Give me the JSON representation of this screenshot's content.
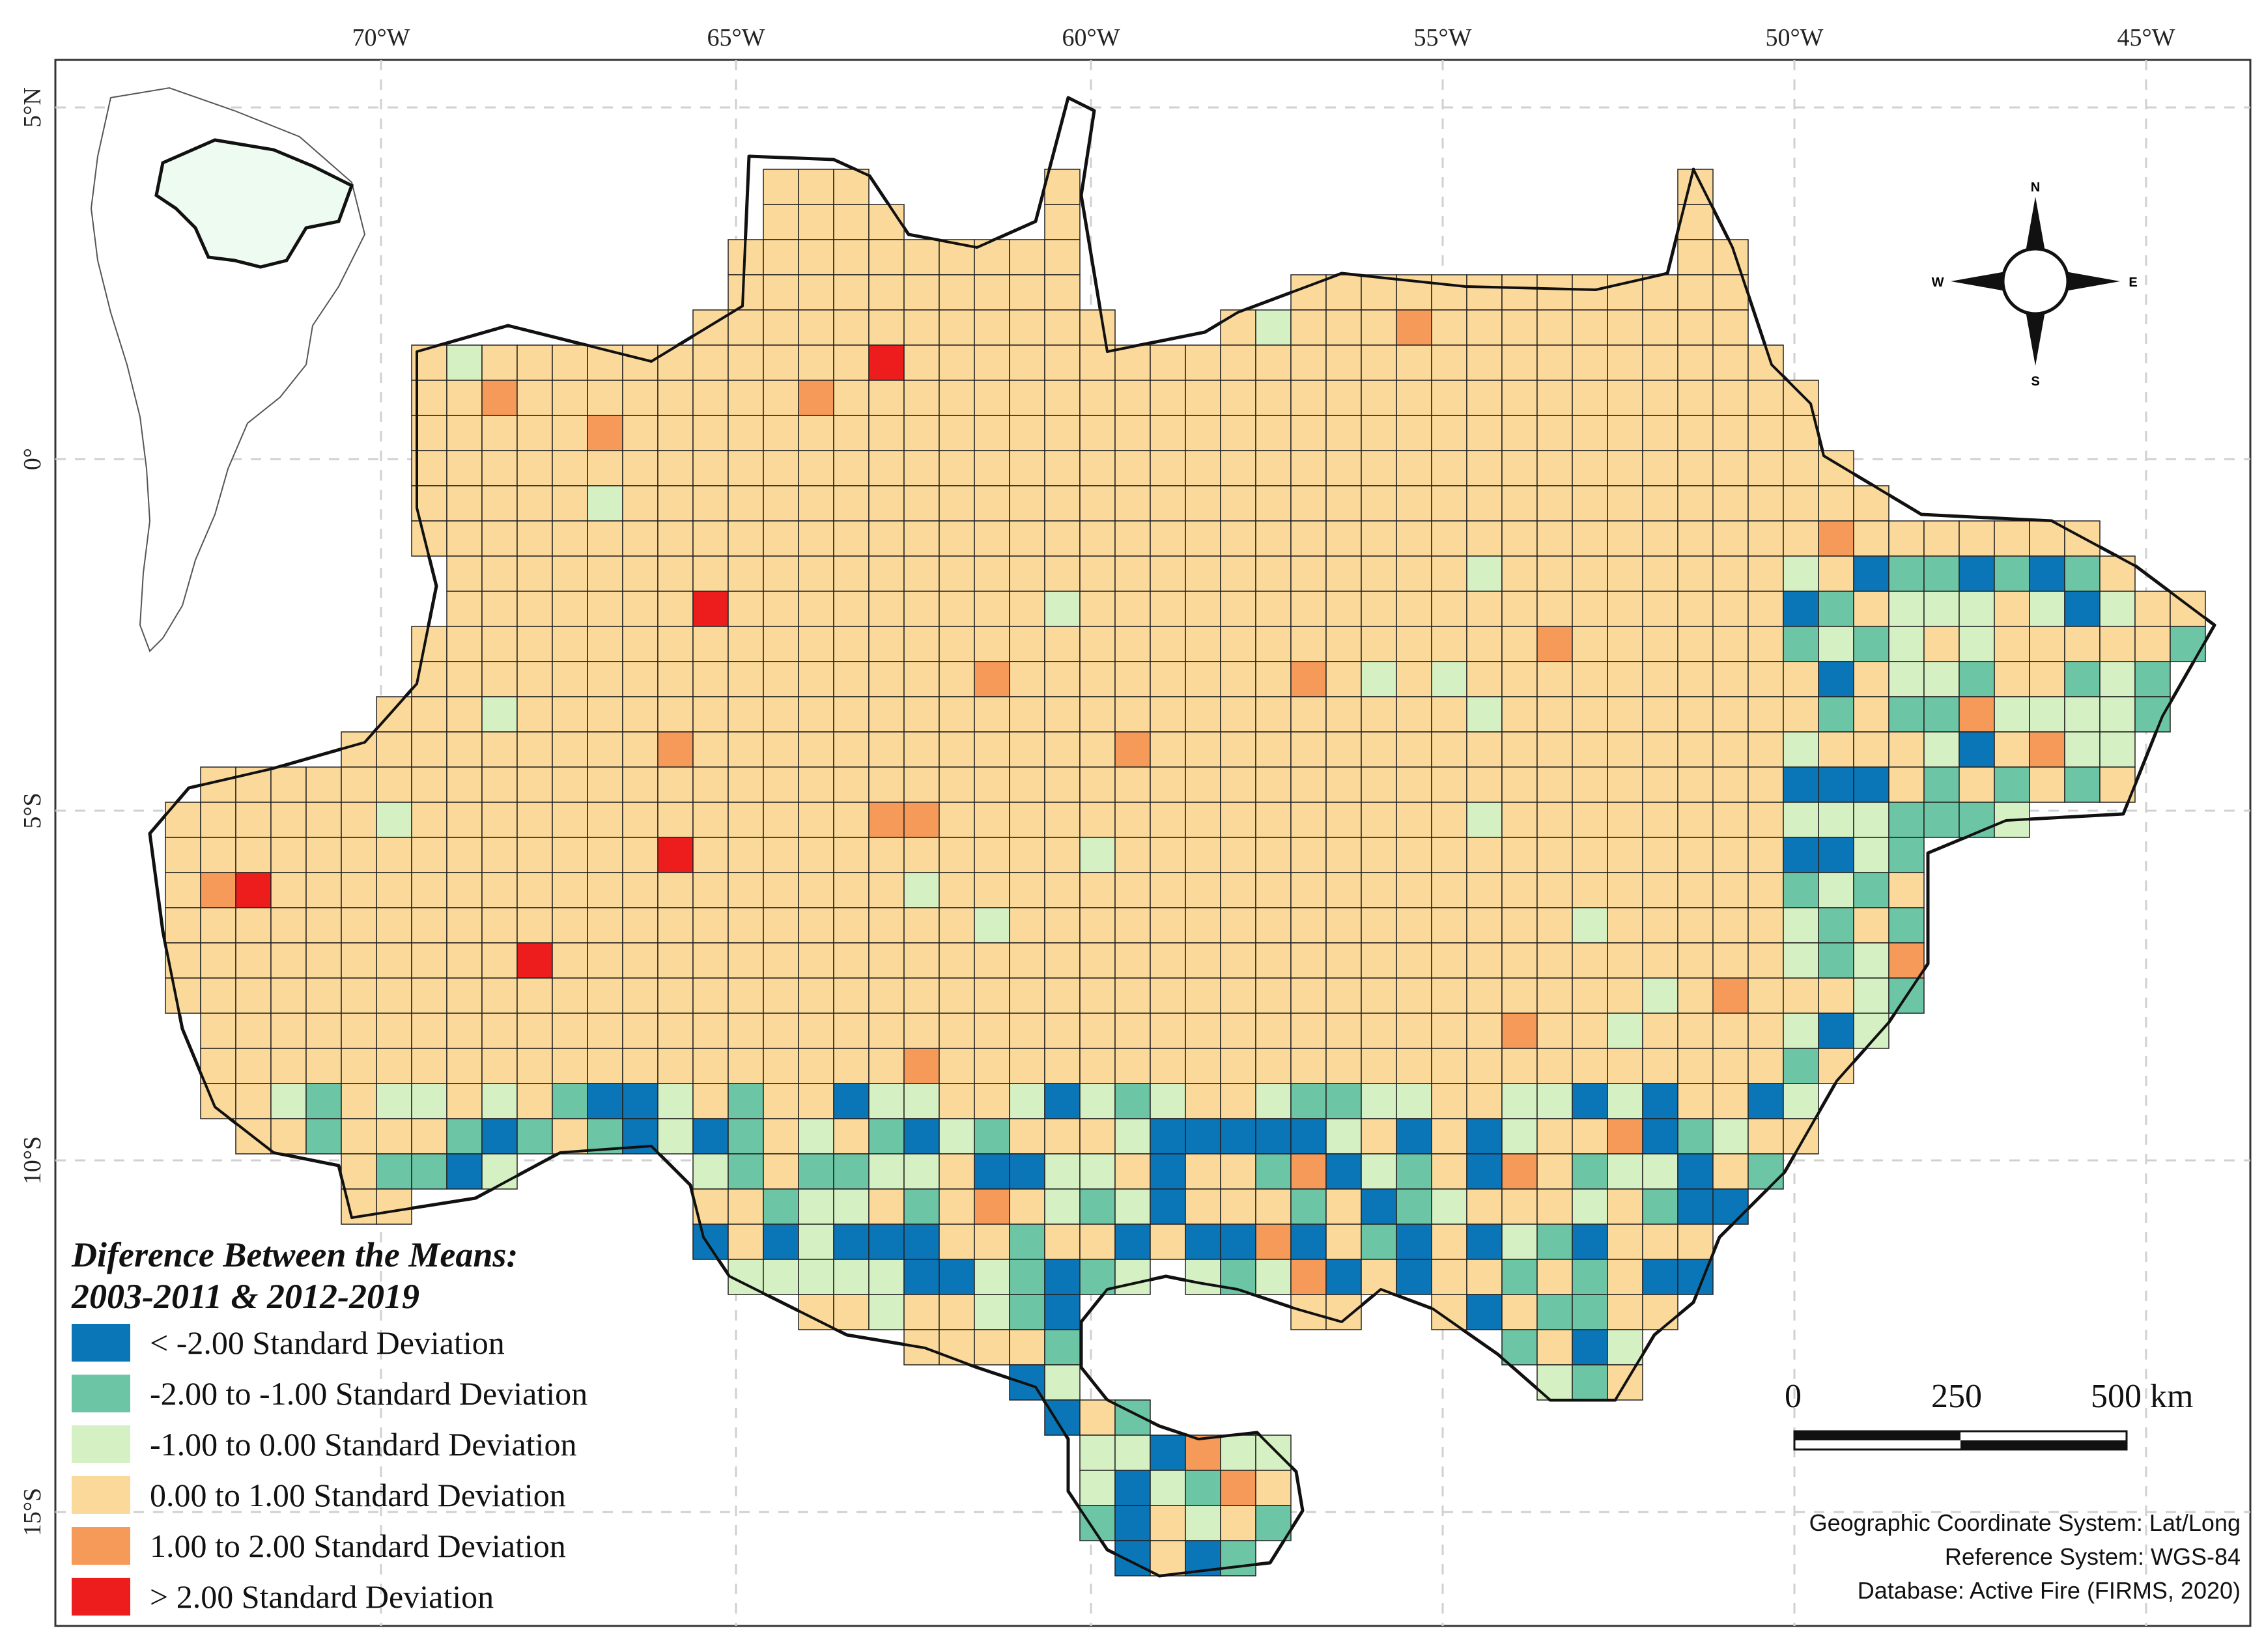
{
  "axes": {
    "lon_labels": [
      "70°W",
      "65°W",
      "60°W",
      "55°W",
      "50°W",
      "45°W"
    ],
    "lat_labels": [
      "5°N",
      "0°",
      "5°S",
      "10°S",
      "15°S"
    ]
  },
  "legend": {
    "title_line1": "Diference Between the Means:",
    "title_line2": "2003-2011 & 2012-2019",
    "classes": [
      {
        "label": "< -2.00 Standard Deviation",
        "color": "#0a76b8"
      },
      {
        "label": "-2.00 to -1.00 Standard Deviation",
        "color": "#6cc5a5"
      },
      {
        "label": "-1.00 to 0.00 Standard Deviation",
        "color": "#d5f0c2"
      },
      {
        "label": "0.00 to 1.00 Standard Deviation",
        "color": "#fad99a"
      },
      {
        "label": "1.00 to 2.00 Standard Deviation",
        "color": "#f59a59"
      },
      {
        "label": "> 2.00 Standard Deviation",
        "color": "#ee1d1d"
      }
    ]
  },
  "scale_bar": {
    "label_0": "0",
    "label_250": "250",
    "label_500": "500 km"
  },
  "compass": {
    "n": "N",
    "s": "S",
    "e": "E",
    "w": "W"
  },
  "notes": {
    "coord_system": "Geographic Coordinate System: Lat/Long",
    "reference_system": "Reference System: WGS-84",
    "database": "Database: Active Fire (FIRMS, 2020)"
  },
  "colors": {
    "land_outline": "#111111",
    "grid_line": "#cccccc",
    "inset_fill": "#eefbf0"
  }
}
